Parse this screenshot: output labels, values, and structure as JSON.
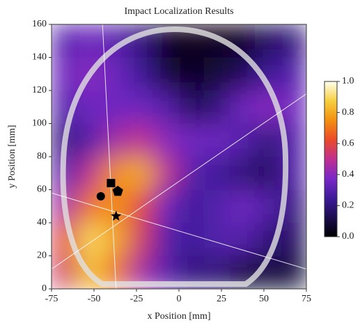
{
  "chart_data": {
    "type": "heatmap",
    "title": "Impact Localization Results",
    "xlabel": "x Position [mm]",
    "ylabel": "y Position [mm]",
    "xlim": [
      -75,
      75
    ],
    "ylim": [
      0,
      160
    ],
    "xticks": [
      -75,
      -50,
      -25,
      0,
      25,
      50,
      75
    ],
    "yticks": [
      0,
      20,
      40,
      60,
      80,
      100,
      120,
      140,
      160
    ],
    "z": [
      [
        0.3,
        0.35,
        0.3,
        0.2,
        0.05,
        0.05,
        0.05,
        0.05,
        0.15,
        0.2
      ],
      [
        0.35,
        0.4,
        0.35,
        0.25,
        0.1,
        0.05,
        0.1,
        0.15,
        0.25,
        0.3
      ],
      [
        0.3,
        0.35,
        0.35,
        0.35,
        0.3,
        0.15,
        0.2,
        0.35,
        0.4,
        0.35
      ],
      [
        0.2,
        0.3,
        0.45,
        0.5,
        0.4,
        0.35,
        0.35,
        0.3,
        0.2,
        0.3
      ],
      [
        0.3,
        0.5,
        0.75,
        0.8,
        0.5,
        0.3,
        0.25,
        0.2,
        0.15,
        0.3
      ],
      [
        0.45,
        0.7,
        0.75,
        0.6,
        0.35,
        0.25,
        0.3,
        0.35,
        0.3,
        0.2
      ],
      [
        0.6,
        0.9,
        0.8,
        0.55,
        0.3,
        0.25,
        0.3,
        0.3,
        0.2,
        0.15
      ],
      [
        0.55,
        0.85,
        0.7,
        0.45,
        0.3,
        0.2,
        0.2,
        0.1,
        0.1,
        0.1
      ]
    ],
    "colormap": [
      "#000000",
      "#1c0c4e",
      "#3d1a9a",
      "#7a28c8",
      "#c03090",
      "#ec4a28",
      "#f39010",
      "#f6d040",
      "#fffff0"
    ],
    "clim": [
      0,
      1
    ],
    "cticks": [
      {
        "value": 0,
        "label": "0.0"
      },
      {
        "value": 0.2,
        "label": "0.2"
      },
      {
        "value": 0.4,
        "label": "0.4"
      },
      {
        "value": 0.6,
        "label": "0.6"
      },
      {
        "value": 0.8,
        "label": "0.8"
      },
      {
        "value": 1,
        "label": "1.0"
      }
    ],
    "lines": [
      {
        "x": [
          -45,
          -37
        ],
        "y": [
          160,
          0
        ]
      },
      {
        "x": [
          -75,
          75
        ],
        "y": [
          12,
          118
        ]
      },
      {
        "x": [
          -75,
          75
        ],
        "y": [
          58,
          12
        ]
      }
    ],
    "markers": [
      {
        "shape": "square",
        "x": -40,
        "y": 64
      },
      {
        "shape": "circle",
        "x": -46,
        "y": 56
      },
      {
        "shape": "pentagon",
        "x": -36,
        "y": 59
      },
      {
        "shape": "star",
        "x": -37,
        "y": 44
      }
    ]
  }
}
